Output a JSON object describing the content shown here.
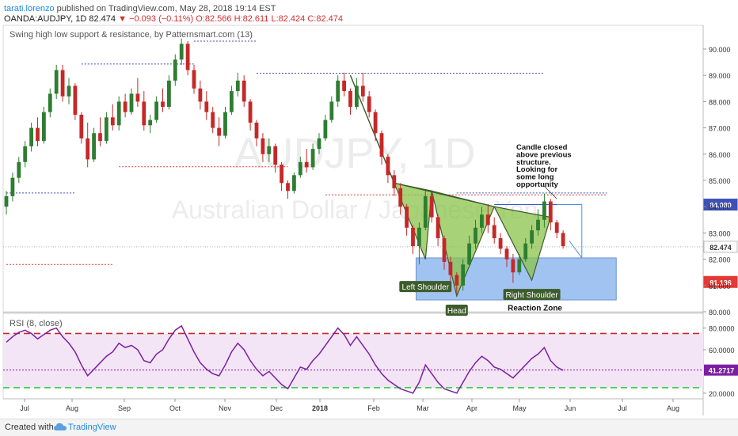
{
  "header": {
    "author": "tarati.lorenzo",
    "published": "published on TradingView.com, May 28, 2018 19:14 EST",
    "symbol": "OANDA:AUDJPY, 1D",
    "last": "82.474",
    "change": "−0.093 (−0.11%)",
    "ohlc": "O:82.566 H:82.611 L:82.424 C:82.474"
  },
  "indicator_label": "Swing high low support & resistance, by Patternsmart.com (13)",
  "rsi_label": "RSI (8, close)",
  "watermark": {
    "symbol": "AUDJPY, 1D",
    "name": "Australian Dollar / Japanese Yen"
  },
  "footer": {
    "created": "Created with",
    "brand": "TradingView"
  },
  "colors": {
    "up": "#2e7d32",
    "down": "#c62828",
    "pattern_fill": "#8bc34a",
    "zone_fill": "#90b8ee",
    "rsi_line": "#7b1fa2",
    "rsi_band": "#f3e5f5"
  },
  "chart_data": [
    {
      "type": "candlestick",
      "title": "OANDA:AUDJPY, 1D",
      "x_ticks": [
        "Jul",
        "Aug",
        "Sep",
        "Oct",
        "Nov",
        "Dec",
        "2018",
        "Feb",
        "Mar",
        "Apr",
        "May",
        "Jun",
        "Jul",
        "Aug"
      ],
      "y_ticks": [
        "90.000",
        "89.000",
        "88.000",
        "87.000",
        "86.000",
        "85.000",
        "84.000",
        "83.000",
        "82.000",
        "81.000",
        "80.000"
      ],
      "ylim": [
        79.93,
        91.1
      ],
      "price_labels": {
        "current": "82.474",
        "resistance": "84.080",
        "low": "81.136"
      },
      "swing_levels": [
        {
          "price": 84.52,
          "start": 0,
          "end": 11,
          "color": "#3f51b5"
        },
        {
          "price": 89.43,
          "start": 12,
          "end": 30,
          "color": "#3f51b5"
        },
        {
          "price": 85.52,
          "start": 18,
          "end": 45,
          "color": "#e53935"
        },
        {
          "price": 90.3,
          "start": 30,
          "end": 40,
          "color": "#3f51b5"
        },
        {
          "price": 89.08,
          "start": 40,
          "end": 86,
          "color": "#3f51b5"
        },
        {
          "price": 84.45,
          "start": 51,
          "end": 96,
          "color": "#e53935"
        },
        {
          "price": 84.52,
          "start": 72,
          "end": 96,
          "color": "#3f51b5"
        },
        {
          "price": 81.8,
          "start": 0,
          "end": 17,
          "color": "#e53935"
        }
      ],
      "candles": [
        [
          84.0,
          84.6,
          83.7,
          84.4
        ],
        [
          84.4,
          85.3,
          84.2,
          85.1
        ],
        [
          85.1,
          85.9,
          84.9,
          85.7
        ],
        [
          85.7,
          86.5,
          85.5,
          86.3
        ],
        [
          86.3,
          87.2,
          86.1,
          87.0
        ],
        [
          87.0,
          87.4,
          86.3,
          86.5
        ],
        [
          86.5,
          87.8,
          86.4,
          87.6
        ],
        [
          87.6,
          88.5,
          87.4,
          88.3
        ],
        [
          88.3,
          89.4,
          88.1,
          89.2
        ],
        [
          89.2,
          89.4,
          88.0,
          88.2
        ],
        [
          88.2,
          88.9,
          87.9,
          88.6
        ],
        [
          88.6,
          88.7,
          87.3,
          87.5
        ],
        [
          87.5,
          87.6,
          86.4,
          86.6
        ],
        [
          86.6,
          87.2,
          85.5,
          85.8
        ],
        [
          85.8,
          87.0,
          85.7,
          86.8
        ],
        [
          86.8,
          87.4,
          86.3,
          86.5
        ],
        [
          86.5,
          87.6,
          86.4,
          87.4
        ],
        [
          87.4,
          87.9,
          86.9,
          87.1
        ],
        [
          87.1,
          88.2,
          86.9,
          88.0
        ],
        [
          88.0,
          88.3,
          87.4,
          87.6
        ],
        [
          87.6,
          88.5,
          87.5,
          88.3
        ],
        [
          88.3,
          88.9,
          87.8,
          88.0
        ],
        [
          88.0,
          88.4,
          86.9,
          87.1
        ],
        [
          87.1,
          87.5,
          86.8,
          87.3
        ],
        [
          87.3,
          88.2,
          87.2,
          88.0
        ],
        [
          88.0,
          88.5,
          87.6,
          87.8
        ],
        [
          87.8,
          89.0,
          87.7,
          88.8
        ],
        [
          88.8,
          89.8,
          88.6,
          89.6
        ],
        [
          89.6,
          90.4,
          89.4,
          90.2
        ],
        [
          90.2,
          90.3,
          89.0,
          89.2
        ],
        [
          89.2,
          89.4,
          88.3,
          88.5
        ],
        [
          88.5,
          88.8,
          87.7,
          88.0
        ],
        [
          88.0,
          88.4,
          87.3,
          87.6
        ],
        [
          87.6,
          87.8,
          86.8,
          87.0
        ],
        [
          87.0,
          87.4,
          86.3,
          86.7
        ],
        [
          86.7,
          87.8,
          86.6,
          87.6
        ],
        [
          87.6,
          88.6,
          87.5,
          88.4
        ],
        [
          88.4,
          89.1,
          88.2,
          88.8
        ],
        [
          88.8,
          89.0,
          87.8,
          88.0
        ],
        [
          88.0,
          88.1,
          86.9,
          87.2
        ],
        [
          87.2,
          87.3,
          86.3,
          86.6
        ],
        [
          86.6,
          86.8,
          85.7,
          86.0
        ],
        [
          86.0,
          86.6,
          85.7,
          86.3
        ],
        [
          86.3,
          86.4,
          85.3,
          85.6
        ],
        [
          85.6,
          85.7,
          84.6,
          84.9
        ],
        [
          84.9,
          85.0,
          84.3,
          84.6
        ],
        [
          84.6,
          85.3,
          84.5,
          85.2
        ],
        [
          85.2,
          85.9,
          85.1,
          85.7
        ],
        [
          85.7,
          86.2,
          85.3,
          85.5
        ],
        [
          85.5,
          86.4,
          85.4,
          86.2
        ],
        [
          86.2,
          86.8,
          86.0,
          86.6
        ],
        [
          86.6,
          87.5,
          86.5,
          87.3
        ],
        [
          87.3,
          88.2,
          87.2,
          88.0
        ],
        [
          88.0,
          89.0,
          87.8,
          88.8
        ],
        [
          88.8,
          89.1,
          88.2,
          88.4
        ],
        [
          88.4,
          88.5,
          87.5,
          87.8
        ],
        [
          87.8,
          88.9,
          87.7,
          88.6
        ],
        [
          88.6,
          89.1,
          88.0,
          88.2
        ],
        [
          88.2,
          88.4,
          87.4,
          87.6
        ],
        [
          87.6,
          87.7,
          86.5,
          86.8
        ],
        [
          86.8,
          86.9,
          85.6,
          85.9
        ],
        [
          85.9,
          86.0,
          84.9,
          85.2
        ],
        [
          85.2,
          85.4,
          84.4,
          84.7
        ],
        [
          84.7,
          84.9,
          83.7,
          84.0
        ],
        [
          84.0,
          84.1,
          82.9,
          83.2
        ],
        [
          83.2,
          83.3,
          82.2,
          82.5
        ],
        [
          82.5,
          83.4,
          81.8,
          83.2
        ],
        [
          83.2,
          84.6,
          83.1,
          84.4
        ],
        [
          84.4,
          84.5,
          83.4,
          83.6
        ],
        [
          83.6,
          83.7,
          82.5,
          82.8
        ],
        [
          82.8,
          82.9,
          81.6,
          81.9
        ],
        [
          81.9,
          82.1,
          81.0,
          81.4
        ],
        [
          81.4,
          81.5,
          80.7,
          81.0
        ],
        [
          81.0,
          82.0,
          80.8,
          81.8
        ],
        [
          81.8,
          82.9,
          81.7,
          82.6
        ],
        [
          82.6,
          83.5,
          82.4,
          83.2
        ],
        [
          83.2,
          84.0,
          83.0,
          83.7
        ],
        [
          83.7,
          84.1,
          83.0,
          83.3
        ],
        [
          83.3,
          83.6,
          82.6,
          82.8
        ],
        [
          82.8,
          83.0,
          82.2,
          82.4
        ],
        [
          82.4,
          82.5,
          81.7,
          82.0
        ],
        [
          82.0,
          82.2,
          81.1,
          81.5
        ],
        [
          81.5,
          82.2,
          81.4,
          82.0
        ],
        [
          82.0,
          82.8,
          81.9,
          82.6
        ],
        [
          82.6,
          83.3,
          82.4,
          83.1
        ],
        [
          83.1,
          83.9,
          82.9,
          83.5
        ],
        [
          83.5,
          84.5,
          83.2,
          84.2
        ],
        [
          84.2,
          84.3,
          83.1,
          83.4
        ],
        [
          83.4,
          83.5,
          82.8,
          83.0
        ],
        [
          83.0,
          83.1,
          82.4,
          82.5
        ]
      ]
    },
    {
      "type": "line",
      "title": "RSI (8, close)",
      "y_ticks": [
        "80.0000",
        "60.0000",
        "20.0000"
      ],
      "ylim": [
        11.96,
        91.7
      ],
      "current_value": "41.2717",
      "levels": [
        75,
        41.27,
        25
      ],
      "values": [
        67,
        72,
        76,
        78,
        75,
        70,
        74,
        78,
        80,
        72,
        66,
        58,
        46,
        36,
        42,
        48,
        54,
        58,
        66,
        62,
        64,
        60,
        50,
        48,
        56,
        60,
        70,
        78,
        82,
        70,
        58,
        48,
        42,
        38,
        36,
        46,
        58,
        66,
        60,
        50,
        42,
        36,
        40,
        34,
        28,
        24,
        34,
        44,
        42,
        50,
        56,
        64,
        72,
        80,
        74,
        64,
        72,
        64,
        56,
        46,
        38,
        32,
        28,
        24,
        22,
        20,
        30,
        46,
        38,
        30,
        24,
        22,
        20,
        30,
        40,
        48,
        54,
        50,
        44,
        42,
        38,
        34,
        40,
        46,
        52,
        56,
        62,
        50,
        44,
        41
      ]
    }
  ],
  "annotations": {
    "left_shoulder": "Left Shoulder",
    "head": "Head",
    "right_shoulder": "Right Shoulder",
    "reaction_zone": "Reaction Zone",
    "note_lines": [
      "Candle closed",
      "above previous",
      "structure.",
      "Looking for",
      "some long",
      "opportunity"
    ]
  }
}
